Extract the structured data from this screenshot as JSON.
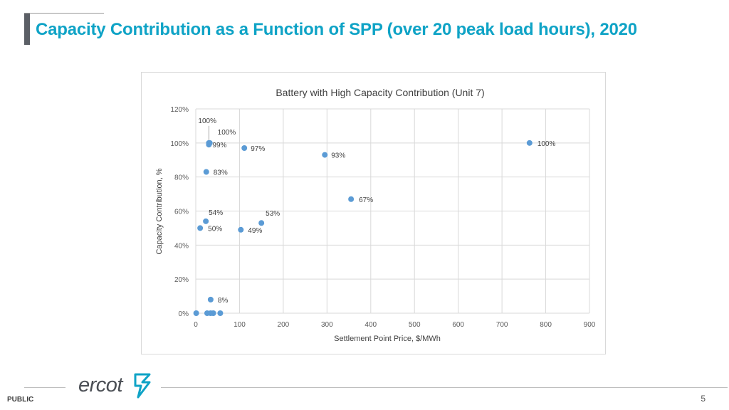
{
  "slide": {
    "title": "Capacity Contribution as a Function of SPP (over 20 peak load hours), 2020",
    "classification": "PUBLIC",
    "page_number": "5",
    "logo_text": "ercot"
  },
  "colors": {
    "accent": "#0fa3c6",
    "point": "#5b9bd5",
    "grid": "#d9d9d9"
  },
  "chart_data": {
    "type": "scatter",
    "title": "Battery with High Capacity Contribution (Unit 7)",
    "xlabel": "Settlement Point Price, $/MWh",
    "ylabel": "Capacity Contribution, %",
    "xlim": [
      0,
      900
    ],
    "ylim": [
      0,
      120
    ],
    "x_ticks": [
      0,
      100,
      200,
      300,
      400,
      500,
      600,
      700,
      800,
      900
    ],
    "y_ticks": [
      0,
      20,
      40,
      60,
      80,
      100,
      120
    ],
    "y_tick_labels": [
      "0%",
      "20%",
      "40%",
      "60%",
      "80%",
      "100%",
      "120%"
    ],
    "grid": true,
    "points": [
      {
        "x": 30,
        "y": 100,
        "label": "100%"
      },
      {
        "x": 32,
        "y": 100,
        "label": "100%"
      },
      {
        "x": 30,
        "y": 99,
        "label": "99%"
      },
      {
        "x": 111,
        "y": 97,
        "label": "97%"
      },
      {
        "x": 295,
        "y": 93,
        "label": "93%"
      },
      {
        "x": 763,
        "y": 100,
        "label": "100%"
      },
      {
        "x": 24,
        "y": 83,
        "label": "83%"
      },
      {
        "x": 355,
        "y": 67,
        "label": "67%"
      },
      {
        "x": 23,
        "y": 54,
        "label": "54%"
      },
      {
        "x": 150,
        "y": 53,
        "label": "53%"
      },
      {
        "x": 10,
        "y": 50,
        "label": "50%"
      },
      {
        "x": 103,
        "y": 49,
        "label": "49%"
      },
      {
        "x": 34,
        "y": 8,
        "label": "8%"
      },
      {
        "x": 1,
        "y": 0,
        "label": ""
      },
      {
        "x": 26,
        "y": 0,
        "label": ""
      },
      {
        "x": 34,
        "y": 0,
        "label": ""
      },
      {
        "x": 40,
        "y": 0,
        "label": ""
      },
      {
        "x": 56,
        "y": 0,
        "label": ""
      }
    ]
  }
}
